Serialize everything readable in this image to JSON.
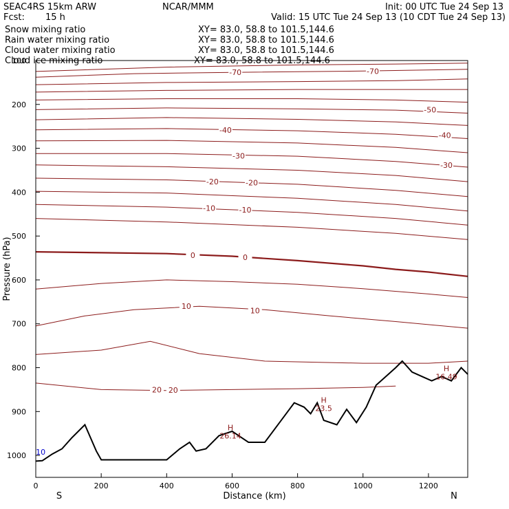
{
  "header": {
    "model": "SEAC4RS 15km ARW",
    "center": "NCAR/MMM",
    "init": "Init: 00 UTC Tue 24 Sep 13",
    "fcst_label": "Fcst:",
    "fcst_value": "15 h",
    "valid": "Valid: 15 UTC Tue 24 Sep 13 (10 CDT Tue 24 Sep 13)"
  },
  "fields": [
    {
      "name": "Snow mixing ratio",
      "xy": "XY=  83.0, 58.8 to 101.5,144.6",
      "color": "#000000"
    },
    {
      "name": "Rain water mixing ratio",
      "xy": "XY=  83.0, 58.8 to 101.5,144.6",
      "color": "#dd0000"
    },
    {
      "name": "Cloud water mixing ratio",
      "xy": "XY=  83.0, 58.8 to 101.5,144.6",
      "color": "#0000cc"
    },
    {
      "name": "Cloud ice mixing ratio",
      "xy": "XY=  83.0, 58.8 to 101.5,144.6",
      "color": "#000000"
    }
  ],
  "colors": {
    "isotherm": "#8b1a1a",
    "terrain": "#000000",
    "axis": "#000000"
  },
  "chart_data": {
    "type": "line",
    "xlabel": "Distance (km)",
    "ylabel": "Pressure (hPa)",
    "xlim": [
      0,
      1320
    ],
    "ylim": [
      1050,
      100
    ],
    "xticks": [
      0,
      200,
      400,
      600,
      800,
      1000,
      1200
    ],
    "yticks": [
      100,
      200,
      300,
      400,
      500,
      600,
      700,
      800,
      900,
      1000
    ],
    "endpoint_labels": {
      "left": "S",
      "right": "N"
    },
    "isotherms": [
      {
        "level": -75,
        "points": [
          [
            0,
            125
          ],
          [
            400,
            115
          ],
          [
            800,
            110
          ],
          [
            1100,
            108
          ],
          [
            1320,
            106
          ]
        ]
      },
      {
        "level": -70,
        "points": [
          [
            0,
            138
          ],
          [
            300,
            130
          ],
          [
            600,
            127
          ],
          [
            1000,
            124
          ],
          [
            1320,
            120
          ]
        ]
      },
      {
        "level": -65,
        "points": [
          [
            0,
            155
          ],
          [
            400,
            150
          ],
          [
            800,
            148
          ],
          [
            1100,
            146
          ],
          [
            1320,
            142
          ]
        ]
      },
      {
        "level": -60,
        "points": [
          [
            0,
            172
          ],
          [
            400,
            168
          ],
          [
            800,
            166
          ],
          [
            1100,
            166
          ],
          [
            1320,
            166
          ]
        ]
      },
      {
        "level": -55,
        "points": [
          [
            0,
            190
          ],
          [
            400,
            187
          ],
          [
            800,
            187
          ],
          [
            1100,
            190
          ],
          [
            1320,
            195
          ]
        ]
      },
      {
        "level": -50,
        "points": [
          [
            0,
            212
          ],
          [
            400,
            208
          ],
          [
            800,
            210
          ],
          [
            1100,
            213
          ],
          [
            1320,
            220
          ]
        ]
      },
      {
        "level": -45,
        "points": [
          [
            0,
            235
          ],
          [
            400,
            230
          ],
          [
            800,
            234
          ],
          [
            1100,
            240
          ],
          [
            1320,
            248
          ]
        ]
      },
      {
        "level": -40,
        "points": [
          [
            0,
            258
          ],
          [
            400,
            255
          ],
          [
            800,
            260
          ],
          [
            1100,
            268
          ],
          [
            1320,
            278
          ]
        ]
      },
      {
        "level": -35,
        "points": [
          [
            0,
            283
          ],
          [
            400,
            282
          ],
          [
            800,
            288
          ],
          [
            1100,
            298
          ],
          [
            1320,
            310
          ]
        ]
      },
      {
        "level": -30,
        "points": [
          [
            0,
            312
          ],
          [
            400,
            312
          ],
          [
            800,
            318
          ],
          [
            1100,
            330
          ],
          [
            1320,
            343
          ]
        ]
      },
      {
        "level": -25,
        "points": [
          [
            0,
            338
          ],
          [
            400,
            342
          ],
          [
            800,
            350
          ],
          [
            1100,
            362
          ],
          [
            1320,
            376
          ]
        ]
      },
      {
        "level": -20,
        "points": [
          [
            0,
            368
          ],
          [
            400,
            372
          ],
          [
            800,
            382
          ],
          [
            1100,
            396
          ],
          [
            1320,
            410
          ]
        ]
      },
      {
        "level": -15,
        "points": [
          [
            0,
            398
          ],
          [
            400,
            402
          ],
          [
            800,
            414
          ],
          [
            1100,
            428
          ],
          [
            1320,
            443
          ]
        ]
      },
      {
        "level": -10,
        "points": [
          [
            0,
            428
          ],
          [
            400,
            434
          ],
          [
            800,
            446
          ],
          [
            1100,
            460
          ],
          [
            1320,
            475
          ]
        ]
      },
      {
        "level": -5,
        "points": [
          [
            0,
            460
          ],
          [
            400,
            468
          ],
          [
            800,
            480
          ],
          [
            1100,
            494
          ],
          [
            1320,
            508
          ]
        ]
      },
      {
        "level": 0,
        "points": [
          [
            0,
            536
          ],
          [
            200,
            538
          ],
          [
            400,
            540
          ],
          [
            600,
            546
          ],
          [
            800,
            556
          ],
          [
            1000,
            568
          ],
          [
            1100,
            576
          ],
          [
            1200,
            582
          ],
          [
            1320,
            592
          ]
        ]
      },
      {
        "level": 5,
        "points": [
          [
            0,
            621
          ],
          [
            200,
            608
          ],
          [
            400,
            600
          ],
          [
            600,
            604
          ],
          [
            800,
            610
          ],
          [
            1000,
            620
          ],
          [
            1200,
            632
          ],
          [
            1320,
            640
          ]
        ]
      },
      {
        "level": 10,
        "points": [
          [
            0,
            705
          ],
          [
            150,
            682
          ],
          [
            300,
            668
          ],
          [
            500,
            660
          ],
          [
            700,
            668
          ],
          [
            900,
            682
          ],
          [
            1100,
            695
          ],
          [
            1320,
            710
          ]
        ]
      },
      {
        "level": 15,
        "points": [
          [
            0,
            770
          ],
          [
            200,
            760
          ],
          [
            350,
            740
          ],
          [
            500,
            768
          ],
          [
            700,
            785
          ],
          [
            1000,
            790
          ],
          [
            1200,
            790
          ],
          [
            1320,
            785
          ]
        ]
      },
      {
        "level": 20,
        "points": [
          [
            0,
            835
          ],
          [
            200,
            850
          ],
          [
            400,
            852
          ],
          [
            600,
            850
          ],
          [
            800,
            848
          ],
          [
            1000,
            845
          ],
          [
            1100,
            842
          ]
        ]
      }
    ],
    "isotherm_labels": [
      {
        "text": "-70",
        "x": 610,
        "p": 127
      },
      {
        "text": "-70",
        "x": 1030,
        "p": 124
      },
      {
        "text": "-50",
        "x": 1205,
        "p": 212
      },
      {
        "text": "-40",
        "x": 580,
        "p": 258
      },
      {
        "text": "-40",
        "x": 1250,
        "p": 270
      },
      {
        "text": "-30",
        "x": 620,
        "p": 317
      },
      {
        "text": "-30",
        "x": 1255,
        "p": 338
      },
      {
        "text": "-20",
        "x": 540,
        "p": 376
      },
      {
        "text": "-20",
        "x": 660,
        "p": 378
      },
      {
        "text": "-10",
        "x": 530,
        "p": 436
      },
      {
        "text": "-10",
        "x": 640,
        "p": 440
      },
      {
        "text": "0",
        "x": 480,
        "p": 544
      },
      {
        "text": "0",
        "x": 640,
        "p": 548
      },
      {
        "text": "10",
        "x": 460,
        "p": 660
      },
      {
        "text": "10",
        "x": 670,
        "p": 670
      },
      {
        "text": "20",
        "x": 370,
        "p": 850
      },
      {
        "text": "20",
        "x": 420,
        "p": 851
      }
    ],
    "terrain": [
      [
        0,
        1013
      ],
      [
        20,
        1012
      ],
      [
        50,
        997
      ],
      [
        80,
        985
      ],
      [
        110,
        960
      ],
      [
        150,
        930
      ],
      [
        185,
        990
      ],
      [
        200,
        1010
      ],
      [
        400,
        1010
      ],
      [
        440,
        985
      ],
      [
        470,
        970
      ],
      [
        490,
        990
      ],
      [
        520,
        985
      ],
      [
        560,
        955
      ],
      [
        600,
        945
      ],
      [
        650,
        970
      ],
      [
        700,
        970
      ],
      [
        760,
        910
      ],
      [
        790,
        880
      ],
      [
        820,
        890
      ],
      [
        840,
        905
      ],
      [
        860,
        880
      ],
      [
        880,
        920
      ],
      [
        920,
        930
      ],
      [
        950,
        895
      ],
      [
        980,
        925
      ],
      [
        1010,
        890
      ],
      [
        1040,
        840
      ],
      [
        1070,
        820
      ],
      [
        1100,
        800
      ],
      [
        1120,
        785
      ],
      [
        1150,
        810
      ],
      [
        1180,
        820
      ],
      [
        1210,
        830
      ],
      [
        1240,
        820
      ],
      [
        1270,
        830
      ],
      [
        1300,
        800
      ],
      [
        1320,
        815
      ]
    ],
    "highs": [
      {
        "text": "H",
        "x": 595,
        "p": 943,
        "value": "26.14"
      },
      {
        "text": "H",
        "x": 880,
        "p": 880,
        "value": "23.5"
      },
      {
        "text": "H",
        "x": 1255,
        "p": 808,
        "value": "16.49"
      }
    ],
    "blue_marker": {
      "text": "10",
      "x": 15,
      "p": 998
    }
  }
}
